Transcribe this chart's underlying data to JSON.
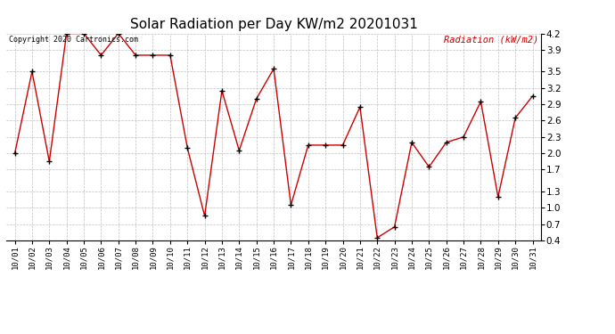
{
  "title": "Solar Radiation per Day KW/m2 20201031",
  "legend_label": "Radiation (kW/m2)",
  "copyright_text": "Copyright 2020 Cartronics.com",
  "dates": [
    "10/01",
    "10/02",
    "10/03",
    "10/04",
    "10/05",
    "10/06",
    "10/07",
    "10/08",
    "10/09",
    "10/10",
    "10/11",
    "10/12",
    "10/13",
    "10/14",
    "10/15",
    "10/16",
    "10/17",
    "10/18",
    "10/19",
    "10/20",
    "10/21",
    "10/22",
    "10/23",
    "10/24",
    "10/25",
    "10/26",
    "10/27",
    "10/28",
    "10/29",
    "10/30",
    "10/31"
  ],
  "values": [
    2.0,
    3.5,
    1.85,
    4.2,
    4.2,
    3.8,
    4.2,
    3.8,
    3.8,
    3.8,
    2.1,
    0.85,
    3.15,
    2.05,
    3.0,
    3.55,
    1.05,
    2.15,
    2.15,
    2.15,
    2.85,
    0.45,
    0.65,
    2.2,
    1.75,
    2.2,
    2.3,
    2.95,
    1.2,
    2.65,
    3.05
  ],
  "line_color": "#cc0000",
  "marker_color": "#000000",
  "background_color": "#ffffff",
  "grid_color": "#b0b0b0",
  "title_color": "#000000",
  "legend_color": "#cc0000",
  "copyright_color": "#000000",
  "ylim_min": 0.4,
  "ylim_max": 4.2,
  "yticks": [
    0.4,
    0.7,
    1.0,
    1.3,
    1.7,
    2.0,
    2.3,
    2.6,
    2.9,
    3.2,
    3.5,
    3.9,
    4.2
  ],
  "fig_width": 6.9,
  "fig_height": 3.75,
  "dpi": 100
}
